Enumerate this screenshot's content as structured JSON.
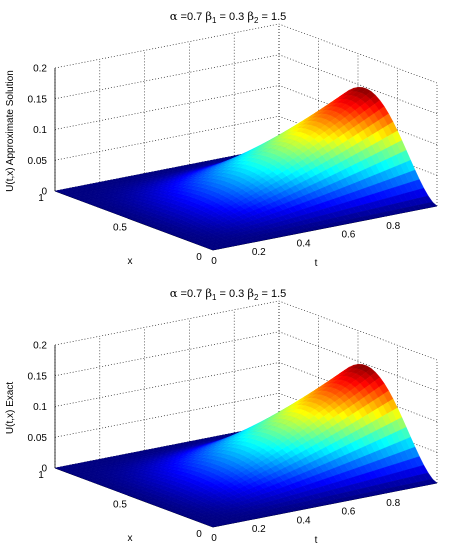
{
  "chart_data": [
    {
      "type": "surface",
      "title": {
        "alpha": "α",
        "alpha_val": " =0.7 ",
        "b1": "β",
        "b1_sub": "1",
        "b1_val": " = 0.3 ",
        "b2": "β",
        "b2_sub": "2",
        "b2_val": " = 1.5"
      },
      "xlabel": "t",
      "ylabel": "x",
      "zlabel": "U(t,x) Approximate Solution",
      "t_ticks": [
        "0",
        "0.2",
        "0.4",
        "0.6",
        "0.8"
      ],
      "x_ticks": [
        "0",
        "0.5",
        "1"
      ],
      "z_ticks": [
        "0",
        "0.05",
        "0.1",
        "0.15",
        "0.2"
      ],
      "t_range": [
        0,
        1
      ],
      "x_range": [
        0,
        1
      ],
      "z_range": [
        0,
        0.2
      ],
      "peak_value": 0.148,
      "colormap": "jet",
      "grid": true
    },
    {
      "type": "surface",
      "title": {
        "alpha": "α",
        "alpha_val": " =0.7 ",
        "b1": "β",
        "b1_sub": "1",
        "b1_val": " = 0.3 ",
        "b2": "β",
        "b2_sub": "2",
        "b2_val": " = 1.5"
      },
      "xlabel": "t",
      "ylabel": "x",
      "zlabel": "U(t,x) Exact",
      "t_ticks": [
        "0",
        "0.2",
        "0.4",
        "0.6",
        "0.8"
      ],
      "x_ticks": [
        "0",
        "0.5",
        "1"
      ],
      "z_ticks": [
        "0",
        "0.05",
        "0.1",
        "0.15",
        "0.2"
      ],
      "t_range": [
        0,
        1
      ],
      "x_range": [
        0,
        1
      ],
      "z_range": [
        0,
        0.2
      ],
      "peak_value": 0.148,
      "colormap": "jet",
      "grid": true
    }
  ]
}
